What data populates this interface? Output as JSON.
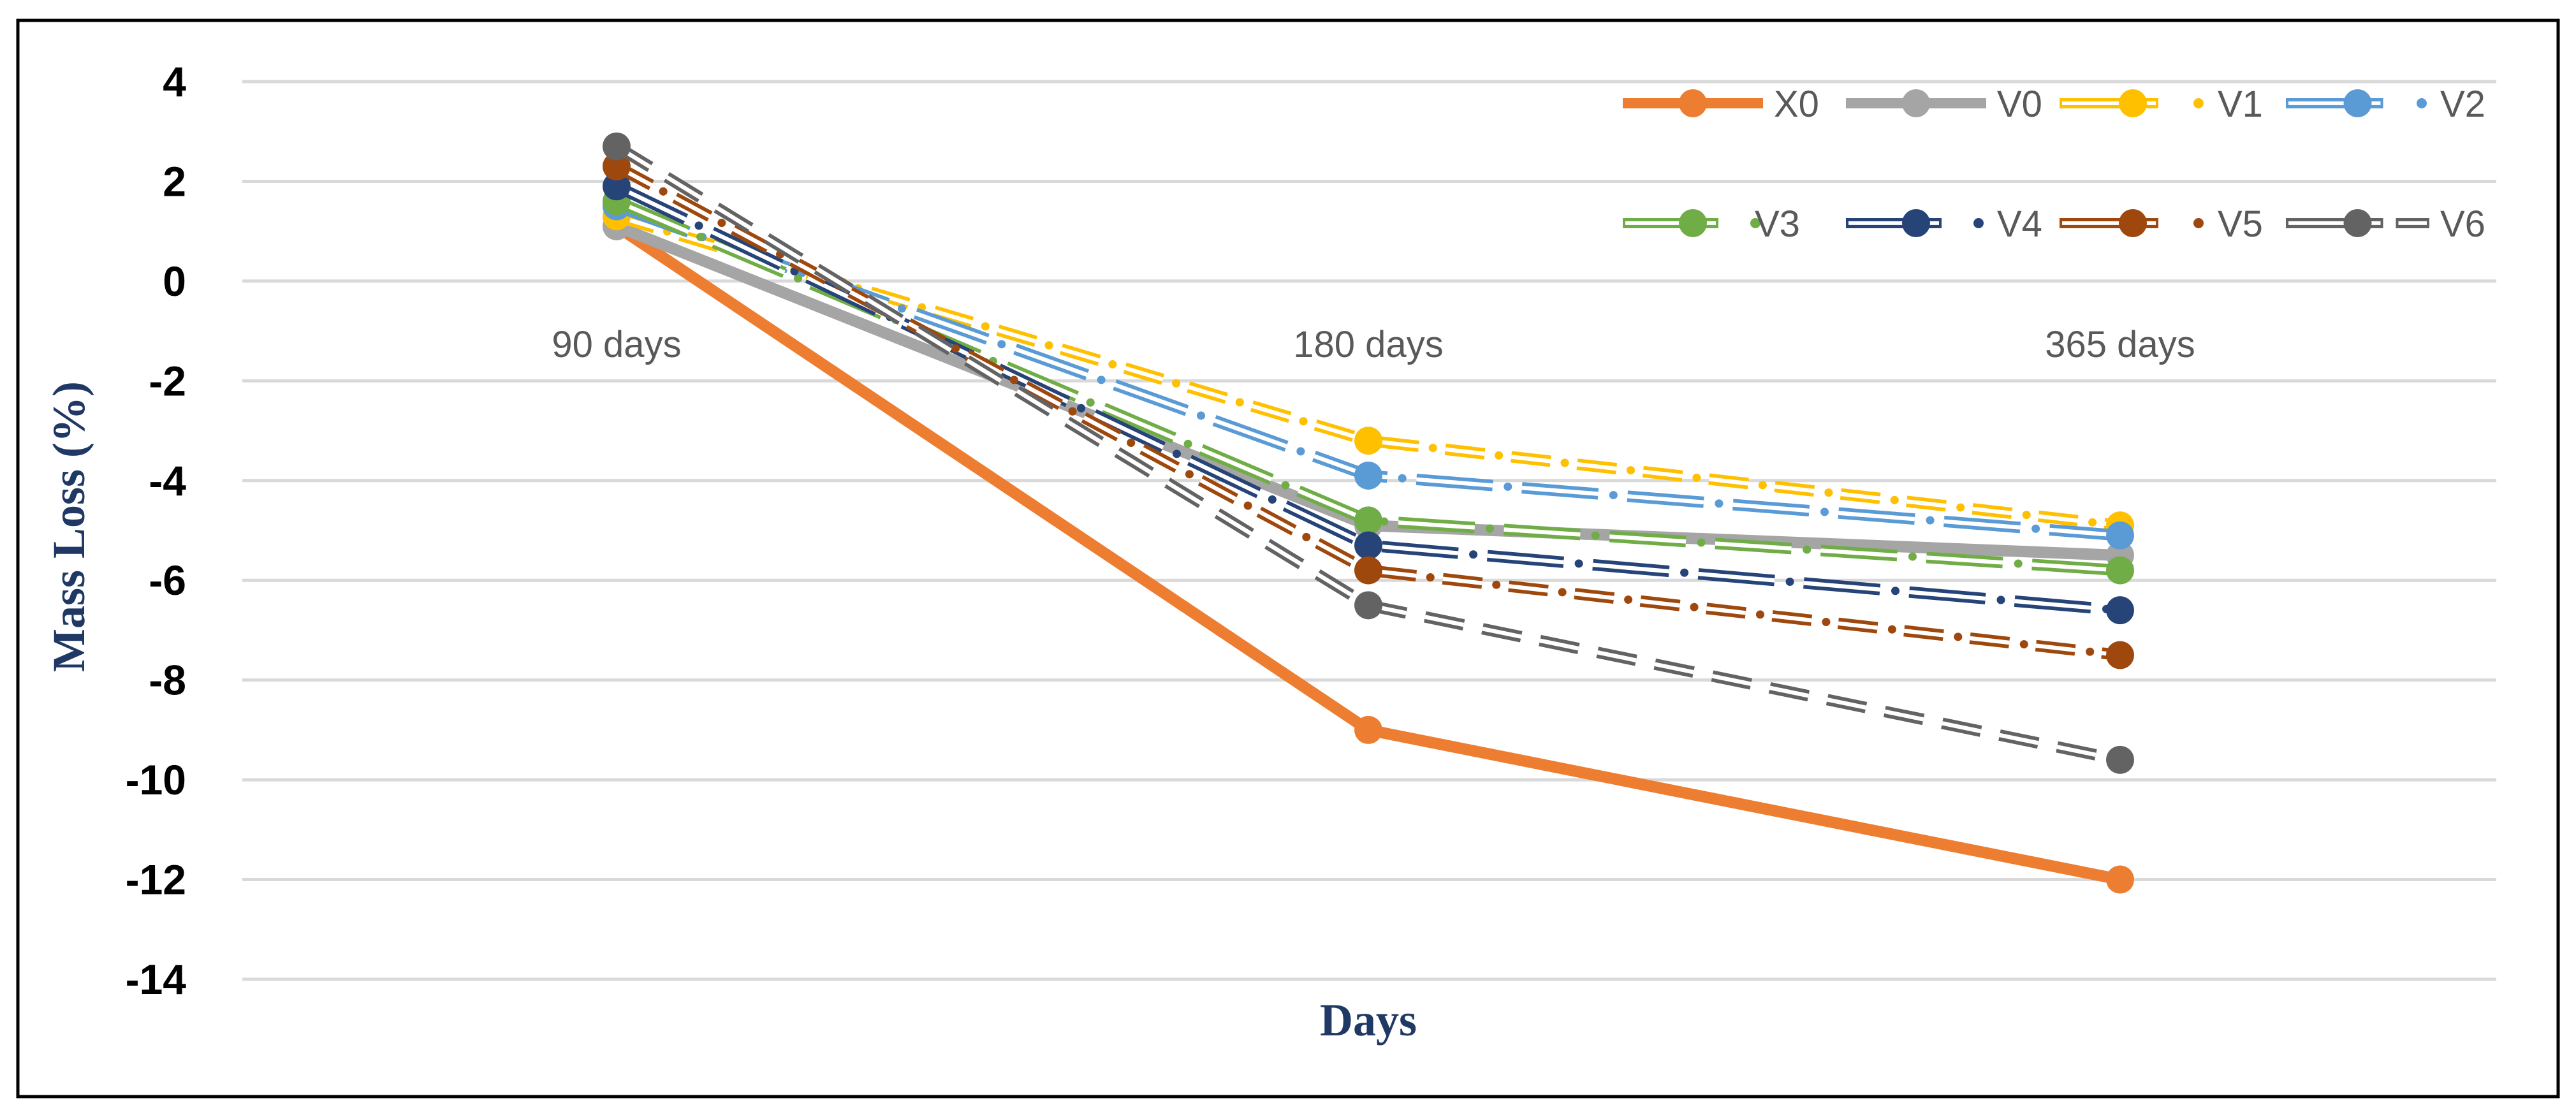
{
  "chart_data": {
    "type": "line",
    "title": "",
    "xlabel": "Days",
    "ylabel": "Mass Loss (%)",
    "categories": [
      "90 days",
      "180 days",
      "365 days"
    ],
    "ylim": [
      -14,
      4
    ],
    "yticks": [
      4,
      2,
      0,
      -2,
      -4,
      -6,
      -8,
      -10,
      -12,
      -14
    ],
    "ytick_labels": [
      "4",
      "2",
      "0",
      "-2",
      "-4",
      "-6",
      "-8",
      "-10",
      "-12",
      "-14"
    ],
    "grid": true,
    "legend_position": "top-right",
    "series": [
      {
        "name": "X0",
        "values": [
          1.1,
          -9.0,
          -12.0
        ],
        "color": "#ED7D31",
        "style": "solid"
      },
      {
        "name": "V0",
        "values": [
          1.1,
          -4.9,
          -5.5
        ],
        "color": "#A5A5A5",
        "style": "solid"
      },
      {
        "name": "V1",
        "values": [
          1.3,
          -3.2,
          -4.9
        ],
        "color": "#FFC000",
        "style": "double-dash-dot"
      },
      {
        "name": "V2",
        "values": [
          1.5,
          -3.9,
          -5.1
        ],
        "color": "#5B9BD5",
        "style": "double-long-dash-dot"
      },
      {
        "name": "V3",
        "values": [
          1.6,
          -4.8,
          -5.8
        ],
        "color": "#70AD47",
        "style": "double-long-dash-dot"
      },
      {
        "name": "V4",
        "values": [
          1.9,
          -5.3,
          -6.6
        ],
        "color": "#264478",
        "style": "double-long-dash-dot"
      },
      {
        "name": "V5",
        "values": [
          2.3,
          -5.8,
          -7.5
        ],
        "color": "#9E480E",
        "style": "double-dash-dot"
      },
      {
        "name": "V6",
        "values": [
          2.7,
          -6.5,
          -9.6
        ],
        "color": "#636363",
        "style": "double-dash"
      }
    ]
  }
}
